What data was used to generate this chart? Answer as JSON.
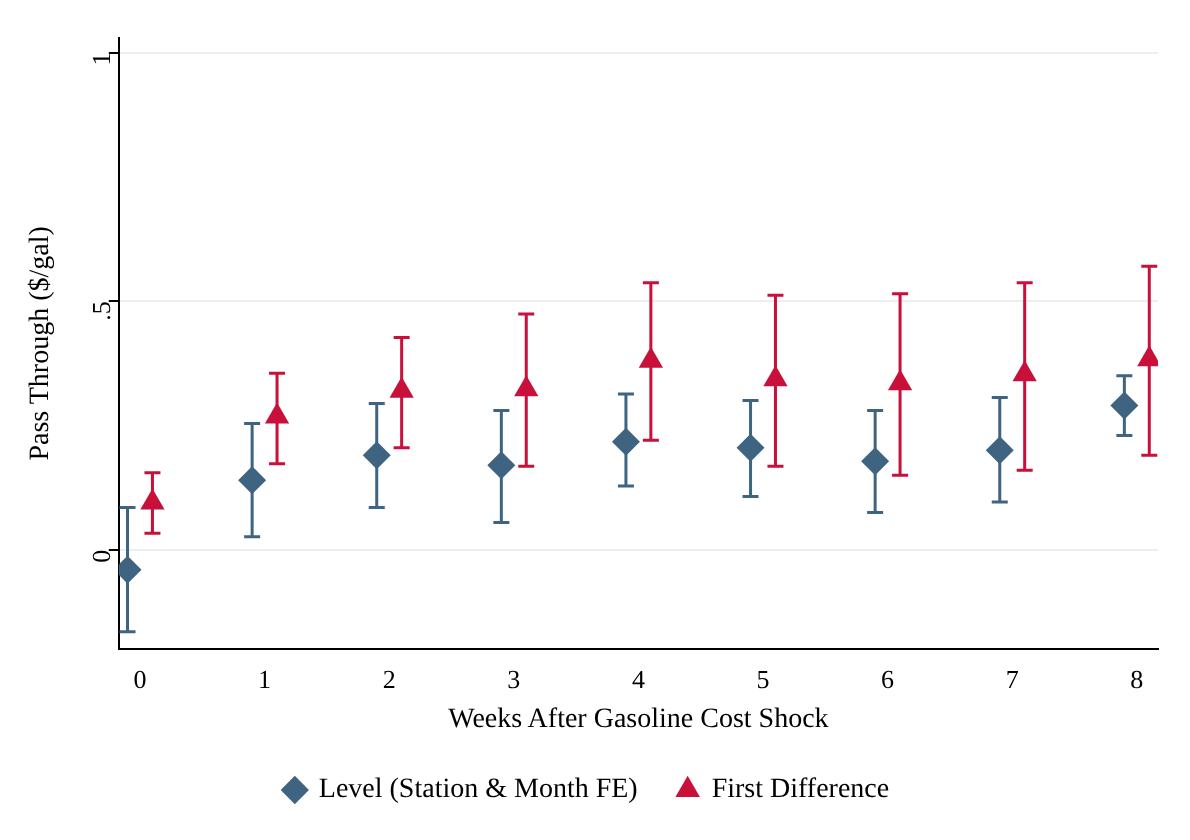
{
  "chart_data": {
    "type": "scatter",
    "xlabel": "Weeks After Gasoline Cost Shock",
    "ylabel": "Pass Through ($/gal)",
    "xlim": [
      -0.17,
      8.17
    ],
    "xticks": [
      0,
      1,
      2,
      3,
      4,
      5,
      6,
      7,
      8
    ],
    "ylim": [
      -0.2,
      1.03
    ],
    "yticks": [
      0,
      {
        "value": 0.5,
        "label": ".5"
      },
      1
    ],
    "grid": "y",
    "legend": "bottom",
    "series": [
      {
        "name": "Level (Station & Month FE)",
        "color": "#3e6482",
        "marker": "diamond",
        "x": [
          -0.1,
          0.9,
          1.9,
          2.9,
          3.9,
          4.9,
          5.9,
          6.9,
          7.9
        ],
        "values": [
          -0.04,
          0.14,
          0.19,
          0.17,
          0.217,
          0.205,
          0.178,
          0.2,
          0.29
        ],
        "errors": [
          [
            -0.165,
            0.085
          ],
          [
            0.026,
            0.254
          ],
          [
            0.085,
            0.294
          ],
          [
            0.055,
            0.28
          ],
          [
            0.128,
            0.313
          ],
          [
            0.107,
            0.3
          ],
          [
            0.075,
            0.28
          ],
          [
            0.096,
            0.306
          ],
          [
            0.23,
            0.35
          ]
        ]
      },
      {
        "name": "First Difference",
        "color": "#c8103a",
        "marker": "triangle",
        "x": [
          0.1,
          1.1,
          2.1,
          3.1,
          4.1,
          5.1,
          6.1,
          7.1,
          8.1
        ],
        "values": [
          0.095,
          0.268,
          0.32,
          0.323,
          0.38,
          0.343,
          0.335,
          0.353,
          0.383
        ],
        "errors": [
          [
            0.033,
            0.155
          ],
          [
            0.173,
            0.355
          ],
          [
            0.205,
            0.427
          ],
          [
            0.168,
            0.474
          ],
          [
            0.22,
            0.537
          ],
          [
            0.168,
            0.512
          ],
          [
            0.15,
            0.515
          ],
          [
            0.16,
            0.537
          ],
          [
            0.19,
            0.57
          ]
        ]
      }
    ]
  }
}
